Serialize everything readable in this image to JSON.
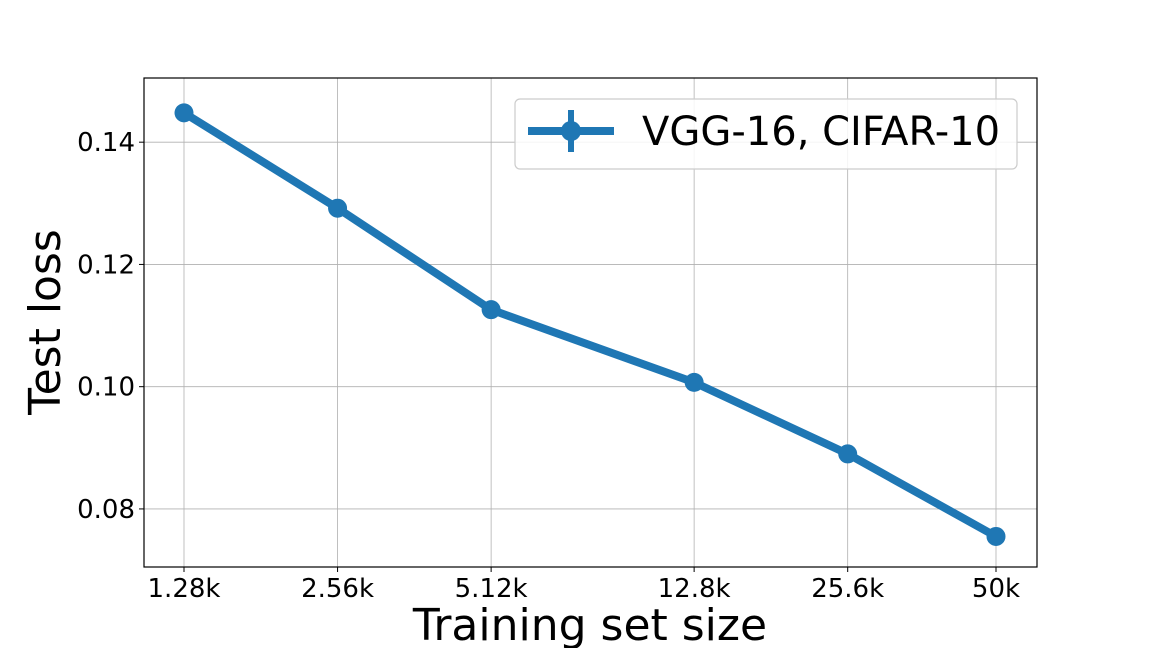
{
  "chart_data": {
    "type": "line",
    "title": "",
    "xlabel": "Training set size",
    "ylabel": "Test loss",
    "x_scale": "log",
    "x": [
      1280,
      2560,
      5120,
      12800,
      25600,
      50000
    ],
    "x_tick_labels": [
      "1.28k",
      "2.56k",
      "5.12k",
      "12.8k",
      "25.6k",
      "50k"
    ],
    "y_ticks": [
      0.08,
      0.1,
      0.12,
      0.14
    ],
    "y_tick_labels": [
      "0.08",
      "0.10",
      "0.12",
      "0.14"
    ],
    "ylim": [
      0.0705,
      0.1505
    ],
    "grid": true,
    "legend_position": "top-right",
    "series": [
      {
        "name": "VGG-16, CIFAR-10",
        "color": "#1f77b4",
        "values": [
          0.1448,
          0.1292,
          0.1126,
          0.1007,
          0.089,
          0.0755
        ],
        "errors": [
          0.0012,
          0.0007,
          0.0007,
          0.0006,
          0.001,
          0.0008
        ]
      }
    ]
  }
}
